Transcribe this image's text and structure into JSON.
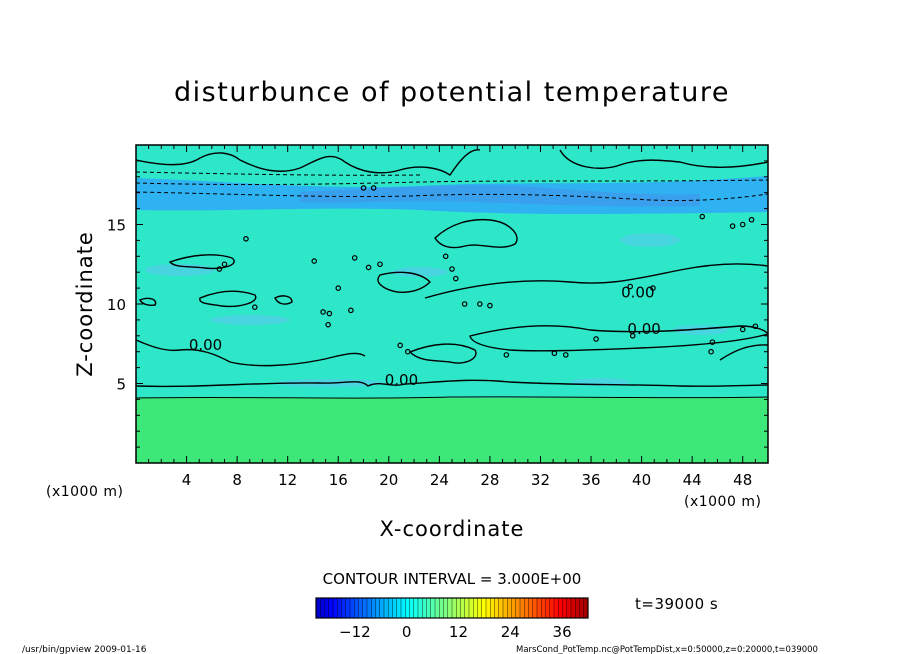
{
  "chart_data": {
    "type": "heatmap",
    "title": "disturbunce of potential temperature",
    "xlabel": "X-coordinate",
    "ylabel": "Z-coordinate",
    "x_unit_left": "(x1000 m)",
    "x_unit_right": "(x1000 m)",
    "xlim": [
      0,
      50
    ],
    "ylim": [
      0,
      20
    ],
    "x_ticks": [
      4,
      8,
      12,
      16,
      20,
      24,
      28,
      32,
      36,
      40,
      44,
      48
    ],
    "y_ticks": [
      5,
      10,
      15
    ],
    "contour_labels": [
      {
        "text": "0.00",
        "x": 21,
        "z": 4.9
      },
      {
        "text": "0.00",
        "x": 5.5,
        "z": 7.1
      },
      {
        "text": "0.00",
        "x": 40.2,
        "z": 8.1
      },
      {
        "text": "0.00",
        "x": 39.7,
        "z": 10.4
      }
    ],
    "contour_interval_label": "CONTOUR INTERVAL = 3.000E+00",
    "colorbar_ticks": [
      -12,
      0,
      12,
      24,
      36
    ],
    "colorbar_range": [
      -21,
      42
    ],
    "time_label": "t=39000 s",
    "footer_left": "/usr/bin/gpview  2009-01-16",
    "footer_right": "MarsCond_PotTemp.nc@PotTempDist,x=0:50000,z=0:20000,t=039000",
    "colors": {
      "surface_layer": "#3ee878",
      "main_layer": "#2ee6c8",
      "cold_band": "#2fb2f2",
      "cold_core": "#3aa0ee"
    }
  }
}
